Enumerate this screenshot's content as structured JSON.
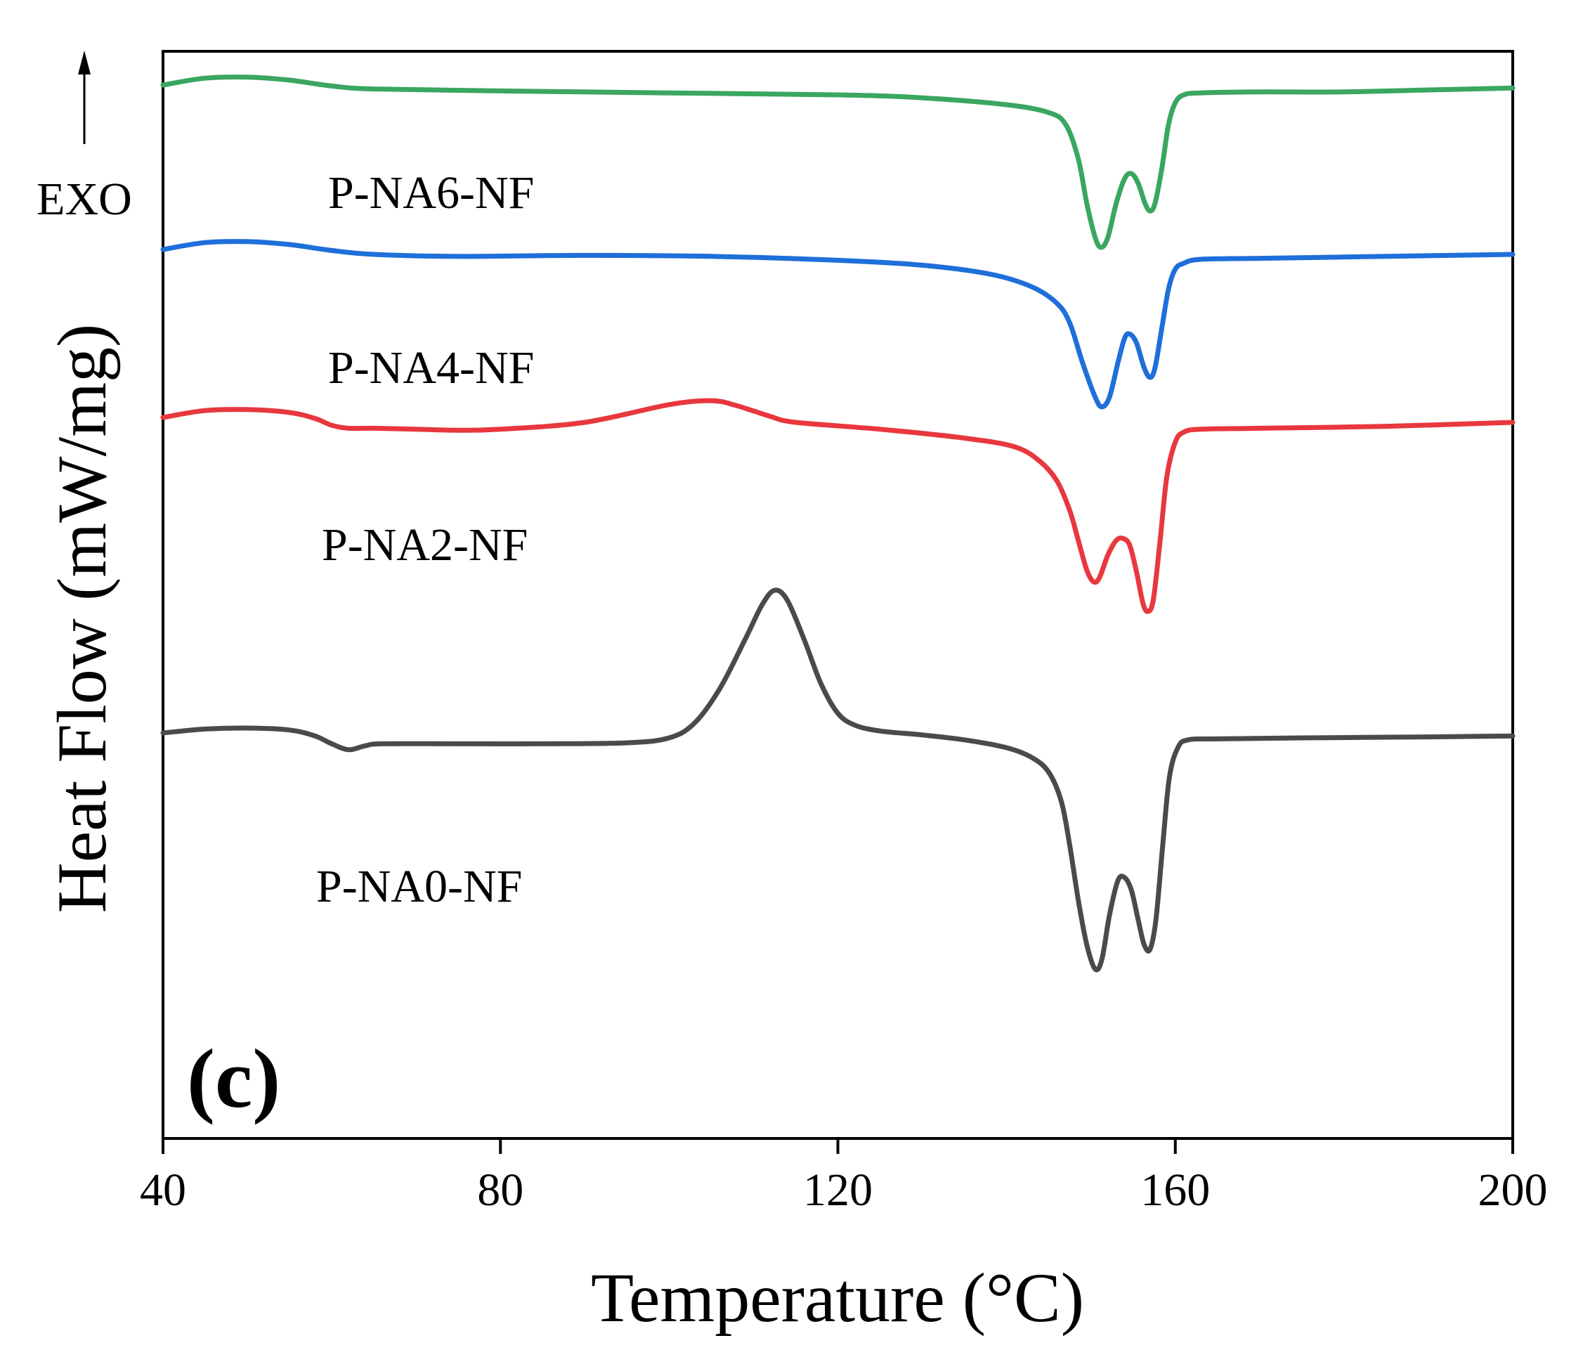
{
  "chart_data": {
    "type": "line",
    "xlabel": "Temperature (°C)",
    "ylabel": "Heat Flow (mW/mg)",
    "xlim": [
      40,
      200
    ],
    "xticks": [
      40,
      80,
      120,
      160,
      200
    ],
    "y_ticks_shown": false,
    "grid": false,
    "legend": "inline labels next to each curve",
    "annotation_exo": "EXO",
    "panel_label": "(c)",
    "series": [
      {
        "name": "P-NA6-NF",
        "color": "#3aa661",
        "points": [
          [
            40,
            0.8
          ],
          [
            45,
            0.87
          ],
          [
            50,
            0.88
          ],
          [
            55,
            0.85
          ],
          [
            60,
            0.79
          ],
          [
            65,
            0.76
          ],
          [
            80,
            0.74
          ],
          [
            100,
            0.72
          ],
          [
            120,
            0.7
          ],
          [
            130,
            0.67
          ],
          [
            140,
            0.6
          ],
          [
            145,
            0.52
          ],
          [
            147,
            0.4
          ],
          [
            148.5,
            0.05
          ],
          [
            149.5,
            -0.4
          ],
          [
            150.5,
            -0.75
          ],
          [
            151.2,
            -0.85
          ],
          [
            152,
            -0.75
          ],
          [
            153,
            -0.4
          ],
          [
            154,
            -0.15
          ],
          [
            154.8,
            -0.1
          ],
          [
            155.6,
            -0.2
          ],
          [
            156.4,
            -0.4
          ],
          [
            157,
            -0.48
          ],
          [
            157.6,
            -0.4
          ],
          [
            158.4,
            -0.05
          ],
          [
            159.2,
            0.4
          ],
          [
            160,
            0.62
          ],
          [
            161,
            0.7
          ],
          [
            163,
            0.72
          ],
          [
            170,
            0.73
          ],
          [
            180,
            0.73
          ],
          [
            190,
            0.75
          ],
          [
            200,
            0.77
          ]
        ]
      },
      {
        "name": "P-NA4-NF",
        "color": "#1e6fd9",
        "points": [
          [
            40,
            0.8
          ],
          [
            45,
            0.87
          ],
          [
            50,
            0.88
          ],
          [
            55,
            0.85
          ],
          [
            60,
            0.79
          ],
          [
            65,
            0.75
          ],
          [
            75,
            0.73
          ],
          [
            90,
            0.74
          ],
          [
            105,
            0.73
          ],
          [
            120,
            0.69
          ],
          [
            130,
            0.64
          ],
          [
            138,
            0.55
          ],
          [
            143,
            0.42
          ],
          [
            146,
            0.25
          ],
          [
            147.5,
            0.05
          ],
          [
            149,
            -0.35
          ],
          [
            150.5,
            -0.7
          ],
          [
            151.3,
            -0.8
          ],
          [
            152.2,
            -0.7
          ],
          [
            153.2,
            -0.35
          ],
          [
            154,
            -0.1
          ],
          [
            154.6,
            -0.06
          ],
          [
            155.4,
            -0.15
          ],
          [
            156.3,
            -0.4
          ],
          [
            157,
            -0.5
          ],
          [
            157.6,
            -0.4
          ],
          [
            158.4,
            0.0
          ],
          [
            159.2,
            0.4
          ],
          [
            160,
            0.6
          ],
          [
            161,
            0.66
          ],
          [
            163,
            0.7
          ],
          [
            170,
            0.71
          ],
          [
            185,
            0.73
          ],
          [
            200,
            0.75
          ]
        ]
      },
      {
        "name": "P-NA2-NF",
        "color": "#e8383d",
        "points": [
          [
            40,
            0.85
          ],
          [
            45,
            0.92
          ],
          [
            50,
            0.93
          ],
          [
            55,
            0.9
          ],
          [
            58,
            0.84
          ],
          [
            60,
            0.77
          ],
          [
            62,
            0.74
          ],
          [
            65,
            0.74
          ],
          [
            70,
            0.73
          ],
          [
            75,
            0.72
          ],
          [
            80,
            0.73
          ],
          [
            90,
            0.8
          ],
          [
            100,
            0.98
          ],
          [
            105,
            1.02
          ],
          [
            108,
            0.97
          ],
          [
            112,
            0.86
          ],
          [
            115,
            0.8
          ],
          [
            125,
            0.73
          ],
          [
            135,
            0.64
          ],
          [
            141,
            0.55
          ],
          [
            144,
            0.4
          ],
          [
            146,
            0.2
          ],
          [
            147.5,
            -0.1
          ],
          [
            148.5,
            -0.4
          ],
          [
            149.5,
            -0.7
          ],
          [
            150.3,
            -0.82
          ],
          [
            151,
            -0.78
          ],
          [
            152,
            -0.55
          ],
          [
            153,
            -0.4
          ],
          [
            153.8,
            -0.38
          ],
          [
            154.6,
            -0.45
          ],
          [
            155.4,
            -0.72
          ],
          [
            156.2,
            -1.05
          ],
          [
            156.8,
            -1.12
          ],
          [
            157.4,
            -1.0
          ],
          [
            158.2,
            -0.4
          ],
          [
            159,
            0.25
          ],
          [
            160,
            0.6
          ],
          [
            161,
            0.7
          ],
          [
            163,
            0.73
          ],
          [
            170,
            0.74
          ],
          [
            185,
            0.76
          ],
          [
            200,
            0.8
          ]
        ]
      },
      {
        "name": "P-NA0-NF",
        "color": "#4a4a4a",
        "points": [
          [
            40,
            0.85
          ],
          [
            45,
            0.89
          ],
          [
            50,
            0.9
          ],
          [
            55,
            0.88
          ],
          [
            58,
            0.82
          ],
          [
            60,
            0.74
          ],
          [
            62,
            0.68
          ],
          [
            64,
            0.72
          ],
          [
            66,
            0.74
          ],
          [
            75,
            0.74
          ],
          [
            85,
            0.74
          ],
          [
            95,
            0.75
          ],
          [
            100,
            0.8
          ],
          [
            103,
            0.95
          ],
          [
            106,
            1.3
          ],
          [
            109,
            1.8
          ],
          [
            111,
            2.15
          ],
          [
            112.5,
            2.3
          ],
          [
            114,
            2.2
          ],
          [
            116,
            1.8
          ],
          [
            118,
            1.35
          ],
          [
            120,
            1.05
          ],
          [
            122,
            0.93
          ],
          [
            125,
            0.87
          ],
          [
            130,
            0.83
          ],
          [
            135,
            0.78
          ],
          [
            140,
            0.7
          ],
          [
            143,
            0.6
          ],
          [
            145,
            0.45
          ],
          [
            146.5,
            0.15
          ],
          [
            147.5,
            -0.3
          ],
          [
            148.5,
            -0.85
          ],
          [
            149.5,
            -1.3
          ],
          [
            150.5,
            -1.55
          ],
          [
            151.3,
            -1.45
          ],
          [
            152.2,
            -1.0
          ],
          [
            153.2,
            -0.65
          ],
          [
            154,
            -0.62
          ],
          [
            154.8,
            -0.75
          ],
          [
            155.6,
            -1.05
          ],
          [
            156.3,
            -1.3
          ],
          [
            157,
            -1.35
          ],
          [
            157.7,
            -1.05
          ],
          [
            158.5,
            -0.3
          ],
          [
            159.3,
            0.4
          ],
          [
            160.3,
            0.7
          ],
          [
            161.5,
            0.78
          ],
          [
            165,
            0.79
          ],
          [
            175,
            0.8
          ],
          [
            190,
            0.81
          ],
          [
            200,
            0.82
          ]
        ]
      }
    ]
  }
}
